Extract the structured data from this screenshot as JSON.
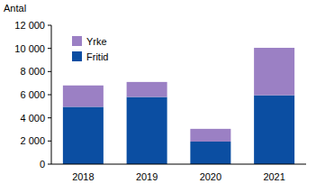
{
  "chart_data": {
    "type": "bar",
    "stacked": true,
    "y_label": "Antal",
    "categories": [
      "2018",
      "2019",
      "2020",
      "2021"
    ],
    "series": [
      {
        "name": "Fritid",
        "color": "#0b4ea2",
        "values": [
          4950,
          5800,
          1950,
          5950
        ]
      },
      {
        "name": "Yrke",
        "color": "#9b80c4",
        "values": [
          1850,
          1300,
          1100,
          4100
        ]
      }
    ],
    "ylim": [
      0,
      12000
    ],
    "yticks": [
      0,
      {
        "value": 2000,
        "label": "2 000"
      },
      {
        "value": 4000,
        "label": "4 000"
      },
      {
        "value": 6000,
        "label": "6 000"
      },
      {
        "value": 8000,
        "label": "8 000"
      },
      {
        "value": 10000,
        "label": "10 000"
      },
      {
        "value": 12000,
        "label": "12 000"
      }
    ],
    "grid": false,
    "legend": "upper left"
  }
}
